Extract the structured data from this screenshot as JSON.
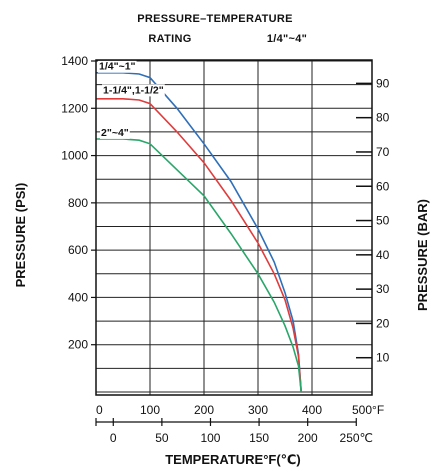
{
  "chart_data": {
    "type": "line",
    "title_line1": "PRESSURE–TEMPERATURE",
    "title_rating": "RATING",
    "title_size": "1/4\"~4\"",
    "ylabel": "PRESSURE (PSI)",
    "ylabel_right": "PRESSURE (BAR)",
    "xlabel": "TEMPERATURE°F(℃)",
    "xlim": [
      0,
      500
    ],
    "ylim": [
      0,
      1400
    ],
    "x_ticks": [
      "0",
      "100",
      "200",
      "300",
      "400",
      "500°F"
    ],
    "x_ticks_c": [
      "0",
      "50",
      "100",
      "150",
      "200",
      "250℃"
    ],
    "y_ticks": [
      "200",
      "400",
      "600",
      "800",
      "1000",
      "1200",
      "1400"
    ],
    "y_ticks_bar": [
      "10",
      "20",
      "30",
      "40",
      "50",
      "60",
      "70",
      "80",
      "90"
    ],
    "grid": true,
    "series": [
      {
        "name": "1/4\"~1\"",
        "color": "#2f6fba",
        "x": [
          0,
          50,
          80,
          100,
          150,
          200,
          250,
          300,
          330,
          350,
          365,
          375,
          380
        ],
        "y": [
          1350,
          1350,
          1345,
          1330,
          1200,
          1050,
          890,
          690,
          550,
          420,
          300,
          160,
          0
        ]
      },
      {
        "name": "1-1/4\",1-1/2\"",
        "color": "#e03c3c",
        "x": [
          0,
          50,
          80,
          100,
          150,
          200,
          250,
          300,
          330,
          350,
          365,
          375,
          380
        ],
        "y": [
          1240,
          1240,
          1235,
          1220,
          1100,
          970,
          810,
          630,
          500,
          390,
          270,
          150,
          0
        ]
      },
      {
        "name": "2\"~4\"",
        "color": "#2aa66a",
        "x": [
          0,
          50,
          80,
          100,
          150,
          200,
          250,
          300,
          330,
          350,
          365,
          375,
          380
        ],
        "y": [
          1070,
          1070,
          1065,
          1050,
          940,
          830,
          670,
          500,
          380,
          280,
          190,
          110,
          0
        ]
      }
    ]
  }
}
